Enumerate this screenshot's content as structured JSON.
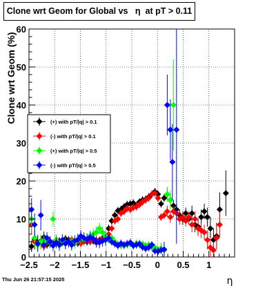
{
  "chart_data": {
    "type": "scatter",
    "title": "Clone wrt Geom for Global vs   η  at pT > 0.11",
    "xlabel": "η",
    "ylabel": "Clone wrt Geom (%)",
    "xlim": [
      -2.5,
      1.5
    ],
    "ylim": [
      0,
      60
    ],
    "x_ticks": [
      -2.5,
      -2,
      -1.5,
      -1,
      -0.5,
      0,
      0.5,
      1
    ],
    "x_tick_labels": [
      "−2.5",
      "−2",
      "−1.5",
      "−1",
      "−0.5",
      "0",
      "0.5",
      "1"
    ],
    "y_ticks": [
      0,
      10,
      20,
      30,
      40,
      50,
      60
    ],
    "y_tick_labels": [
      "0",
      "10",
      "20",
      "30",
      "40",
      "50",
      "60"
    ],
    "grid": true,
    "legend_position": "left-middle",
    "series": [
      {
        "name": "(+) with pT/|q| > 0.1",
        "color": "#000000",
        "points": [
          [
            -2.45,
            2.8,
            1.5
          ],
          [
            -2.39,
            4.5,
            2.5
          ],
          [
            -2.33,
            3.8,
            2.0
          ],
          [
            -2.27,
            4.2,
            1.5
          ],
          [
            -2.21,
            5.2,
            1.5
          ],
          [
            -2.15,
            3.2,
            1.0
          ],
          [
            -2.09,
            4.0,
            1.0
          ],
          [
            -2.03,
            3.5,
            1.0
          ],
          [
            -1.97,
            4.5,
            1.0
          ],
          [
            -1.91,
            4.2,
            1.0
          ],
          [
            -1.85,
            3.8,
            1.0
          ],
          [
            -1.79,
            4.8,
            1.0
          ],
          [
            -1.73,
            4.5,
            1.0
          ],
          [
            -1.67,
            3.2,
            1.0
          ],
          [
            -1.61,
            4.0,
            1.0
          ],
          [
            -1.55,
            3.6,
            1.0
          ],
          [
            -1.49,
            4.5,
            1.0
          ],
          [
            -1.43,
            4.2,
            1.0
          ],
          [
            -1.37,
            4.0,
            1.0
          ],
          [
            -1.31,
            4.5,
            1.0
          ],
          [
            -1.25,
            4.2,
            1.0
          ],
          [
            -1.19,
            3.8,
            1.0
          ],
          [
            -1.13,
            4.4,
            1.0
          ],
          [
            -1.07,
            4.6,
            1.0
          ],
          [
            -1.01,
            5.5,
            1.0
          ],
          [
            -0.95,
            7.5,
            1.0
          ],
          [
            -0.89,
            9.5,
            1.0
          ],
          [
            -0.83,
            11.0,
            1.0
          ],
          [
            -0.77,
            12.2,
            1.0
          ],
          [
            -0.71,
            12.5,
            1.0
          ],
          [
            -0.65,
            13.2,
            1.0
          ],
          [
            -0.59,
            13.8,
            1.0
          ],
          [
            -0.53,
            14.0,
            1.0
          ],
          [
            -0.47,
            14.2,
            1.0
          ],
          [
            -0.41,
            13.5,
            1.0
          ],
          [
            -0.35,
            14.5,
            1.0
          ],
          [
            -0.29,
            15.0,
            1.0
          ],
          [
            -0.23,
            15.2,
            1.0
          ],
          [
            -0.17,
            15.8,
            1.0
          ],
          [
            -0.11,
            16.5,
            1.0
          ],
          [
            -0.05,
            17.2,
            1.0
          ],
          [
            0.01,
            16.5,
            1.0
          ],
          [
            0.07,
            14.0,
            1.0
          ],
          [
            0.13,
            15.5,
            1.0
          ],
          [
            0.19,
            16.5,
            1.5
          ],
          [
            0.25,
            15.0,
            1.5
          ],
          [
            0.31,
            13.5,
            1.5
          ],
          [
            0.37,
            12.5,
            1.5
          ],
          [
            0.43,
            11.0,
            1.5
          ],
          [
            0.49,
            10.0,
            1.5
          ],
          [
            0.55,
            11.5,
            1.5
          ],
          [
            0.61,
            10.0,
            1.5
          ],
          [
            0.67,
            11.5,
            2.0
          ],
          [
            0.73,
            8.5,
            2.0
          ],
          [
            0.79,
            8.0,
            2.0
          ],
          [
            0.85,
            10.5,
            2.0
          ],
          [
            0.91,
            12.0,
            2.0
          ],
          [
            0.97,
            10.5,
            2.5
          ],
          [
            1.03,
            7.5,
            3.0
          ],
          [
            1.09,
            4.5,
            3.0
          ],
          [
            1.15,
            5.5,
            3.5
          ],
          [
            1.21,
            12.5,
            4.5
          ],
          [
            1.33,
            16.8,
            6.0
          ]
        ]
      },
      {
        "name": "(-) with pT/|q| > 0.1",
        "color": "#ff0000",
        "points": [
          [
            -2.45,
            8.5,
            2.5
          ],
          [
            -2.39,
            4.0,
            1.5
          ],
          [
            -2.33,
            3.2,
            1.5
          ],
          [
            -2.27,
            3.8,
            1.5
          ],
          [
            -2.21,
            2.8,
            1.0
          ],
          [
            -2.15,
            4.5,
            1.0
          ],
          [
            -2.09,
            4.2,
            1.0
          ],
          [
            -2.03,
            3.0,
            1.0
          ],
          [
            -1.97,
            4.0,
            1.0
          ],
          [
            -1.91,
            3.2,
            1.0
          ],
          [
            -1.85,
            4.4,
            1.0
          ],
          [
            -1.79,
            3.8,
            1.0
          ],
          [
            -1.73,
            4.0,
            1.0
          ],
          [
            -1.67,
            4.6,
            1.0
          ],
          [
            -1.61,
            3.8,
            1.0
          ],
          [
            -1.55,
            4.2,
            1.0
          ],
          [
            -1.49,
            3.6,
            1.0
          ],
          [
            -1.43,
            4.0,
            1.0
          ],
          [
            -1.37,
            4.5,
            1.0
          ],
          [
            -1.31,
            4.0,
            1.0
          ],
          [
            -1.25,
            4.6,
            1.0
          ],
          [
            -1.19,
            4.4,
            1.0
          ],
          [
            -1.13,
            4.0,
            1.0
          ],
          [
            -1.07,
            5.0,
            1.0
          ],
          [
            -1.01,
            4.8,
            1.0
          ],
          [
            -0.95,
            6.0,
            1.0
          ],
          [
            -0.89,
            7.5,
            1.0
          ],
          [
            -0.83,
            9.5,
            1.0
          ],
          [
            -0.77,
            10.0,
            1.0
          ],
          [
            -0.71,
            11.5,
            1.0
          ],
          [
            -0.65,
            12.0,
            1.0
          ],
          [
            -0.59,
            12.8,
            1.0
          ],
          [
            -0.53,
            12.5,
            1.0
          ],
          [
            -0.47,
            13.0,
            1.0
          ],
          [
            -0.41,
            13.2,
            1.0
          ],
          [
            -0.35,
            13.8,
            1.0
          ],
          [
            -0.29,
            14.5,
            1.0
          ],
          [
            -0.23,
            15.0,
            1.0
          ],
          [
            -0.17,
            15.5,
            1.0
          ],
          [
            -0.11,
            16.5,
            1.0
          ],
          [
            -0.05,
            16.8,
            1.0
          ],
          [
            0.01,
            15.5,
            1.0
          ],
          [
            0.07,
            10.5,
            1.0
          ],
          [
            0.13,
            11.0,
            1.0
          ],
          [
            0.19,
            12.0,
            1.5
          ],
          [
            0.25,
            10.5,
            1.5
          ],
          [
            0.31,
            12.0,
            1.5
          ],
          [
            0.37,
            11.5,
            1.5
          ],
          [
            0.43,
            10.0,
            1.5
          ],
          [
            0.49,
            10.5,
            1.5
          ],
          [
            0.55,
            9.5,
            1.5
          ],
          [
            0.61,
            10.5,
            1.5
          ],
          [
            0.67,
            8.5,
            2.0
          ],
          [
            0.73,
            10.0,
            2.0
          ],
          [
            0.79,
            7.5,
            2.0
          ],
          [
            0.85,
            7.0,
            2.0
          ],
          [
            0.91,
            6.5,
            2.0
          ],
          [
            0.97,
            4.5,
            2.5
          ],
          [
            1.03,
            2.5,
            2.5
          ],
          [
            1.09,
            1.8,
            2.0
          ],
          [
            1.15,
            5.0,
            3.0
          ],
          [
            1.21,
            8.5,
            3.5
          ]
        ]
      },
      {
        "name": "(+) with pT/|q| > 0.5",
        "color": "#00ff00",
        "points": [
          [
            -2.45,
            10.0,
            3.0
          ],
          [
            -2.39,
            5.0,
            2.5
          ],
          [
            -2.33,
            3.2,
            2.0
          ],
          [
            -2.27,
            4.0,
            2.0
          ],
          [
            -2.21,
            4.2,
            1.5
          ],
          [
            -2.15,
            4.5,
            1.5
          ],
          [
            -2.09,
            3.8,
            1.5
          ],
          [
            -2.03,
            10.0,
            2.0
          ],
          [
            -1.97,
            4.5,
            1.5
          ],
          [
            -1.91,
            3.0,
            1.5
          ],
          [
            -1.85,
            4.2,
            1.5
          ],
          [
            -1.79,
            3.8,
            1.5
          ],
          [
            -1.73,
            4.0,
            1.5
          ],
          [
            -1.67,
            4.2,
            1.5
          ],
          [
            -1.61,
            3.6,
            1.5
          ],
          [
            -1.55,
            4.4,
            1.5
          ],
          [
            -1.49,
            5.0,
            1.5
          ],
          [
            -1.43,
            4.6,
            1.5
          ],
          [
            -1.37,
            4.8,
            1.5
          ],
          [
            -1.31,
            5.5,
            1.5
          ],
          [
            -1.25,
            6.0,
            1.5
          ],
          [
            -1.19,
            6.5,
            1.5
          ],
          [
            -1.13,
            7.5,
            1.5
          ],
          [
            -1.07,
            6.5,
            1.5
          ],
          [
            -1.01,
            5.5,
            1.5
          ],
          [
            -0.95,
            4.5,
            1.0
          ],
          [
            -0.89,
            5.0,
            1.0
          ],
          [
            -0.83,
            4.0,
            1.0
          ],
          [
            -0.77,
            3.2,
            1.0
          ],
          [
            -0.71,
            3.0,
            1.0
          ],
          [
            -0.65,
            3.0,
            1.0
          ],
          [
            -0.59,
            3.2,
            1.0
          ],
          [
            -0.53,
            3.5,
            1.0
          ],
          [
            -0.47,
            3.0,
            1.0
          ],
          [
            -0.41,
            3.6,
            1.0
          ],
          [
            -0.35,
            3.2,
            1.0
          ],
          [
            -0.29,
            3.4,
            1.0
          ],
          [
            -0.23,
            3.0,
            1.0
          ],
          [
            -0.17,
            3.2,
            1.0
          ],
          [
            -0.11,
            2.5,
            1.0
          ],
          [
            -0.05,
            2.5,
            1.0
          ],
          [
            0.01,
            2.0,
            1.0
          ],
          [
            0.07,
            2.2,
            1.5
          ],
          [
            0.13,
            1.8,
            1.5
          ],
          [
            0.19,
            16.5,
            2.0
          ],
          [
            0.25,
            15.0,
            2.5
          ],
          [
            0.31,
            40.0,
            12.0
          ]
        ]
      },
      {
        "name": "(-) with pT/|q| > 0.5",
        "color": "#0000ff",
        "points": [
          [
            -2.45,
            12.5,
            3.0
          ],
          [
            -2.39,
            8.5,
            3.0
          ],
          [
            -2.33,
            3.5,
            2.0
          ],
          [
            -2.27,
            11.0,
            4.0
          ],
          [
            -2.21,
            3.2,
            1.5
          ],
          [
            -2.15,
            5.0,
            1.5
          ],
          [
            -2.09,
            4.0,
            1.5
          ],
          [
            -2.03,
            3.0,
            1.5
          ],
          [
            -1.97,
            3.8,
            1.5
          ],
          [
            -1.91,
            3.2,
            1.5
          ],
          [
            -1.85,
            4.5,
            1.5
          ],
          [
            -1.79,
            3.5,
            1.5
          ],
          [
            -1.73,
            4.0,
            1.5
          ],
          [
            -1.67,
            3.2,
            1.5
          ],
          [
            -1.61,
            4.2,
            1.5
          ],
          [
            -1.55,
            4.6,
            1.5
          ],
          [
            -1.49,
            5.5,
            1.5
          ],
          [
            -1.43,
            5.0,
            1.5
          ],
          [
            -1.37,
            4.6,
            1.5
          ],
          [
            -1.31,
            5.2,
            1.5
          ],
          [
            -1.25,
            4.8,
            1.5
          ],
          [
            -1.19,
            4.0,
            1.5
          ],
          [
            -1.13,
            3.8,
            1.5
          ],
          [
            -1.07,
            4.2,
            1.5
          ],
          [
            -1.01,
            4.5,
            1.5
          ],
          [
            -0.95,
            5.0,
            1.0
          ],
          [
            -0.89,
            4.0,
            1.0
          ],
          [
            -0.83,
            3.5,
            1.0
          ],
          [
            -0.77,
            3.0,
            1.0
          ],
          [
            -0.71,
            3.6,
            1.0
          ],
          [
            -0.65,
            3.2,
            1.0
          ],
          [
            -0.59,
            3.5,
            1.0
          ],
          [
            -0.53,
            3.8,
            1.0
          ],
          [
            -0.47,
            3.0,
            1.0
          ],
          [
            -0.41,
            3.2,
            1.0
          ],
          [
            -0.35,
            3.5,
            1.0
          ],
          [
            -0.29,
            2.6,
            1.0
          ],
          [
            -0.23,
            2.2,
            1.0
          ],
          [
            -0.17,
            2.5,
            1.0
          ],
          [
            -0.11,
            3.2,
            1.0
          ],
          [
            -0.05,
            1.6,
            1.0
          ],
          [
            0.01,
            1.5,
            1.0
          ],
          [
            0.07,
            1.8,
            1.0
          ],
          [
            0.13,
            2.0,
            2.0
          ],
          [
            0.19,
            40.0,
            8.0
          ],
          [
            0.25,
            33.5,
            8.0
          ],
          [
            0.29,
            25.0,
            10.0
          ],
          [
            0.37,
            33.5,
            30.0
          ]
        ]
      }
    ]
  },
  "footer": {
    "timestamp": "Thu Jun 26 21:57:15 2025"
  }
}
